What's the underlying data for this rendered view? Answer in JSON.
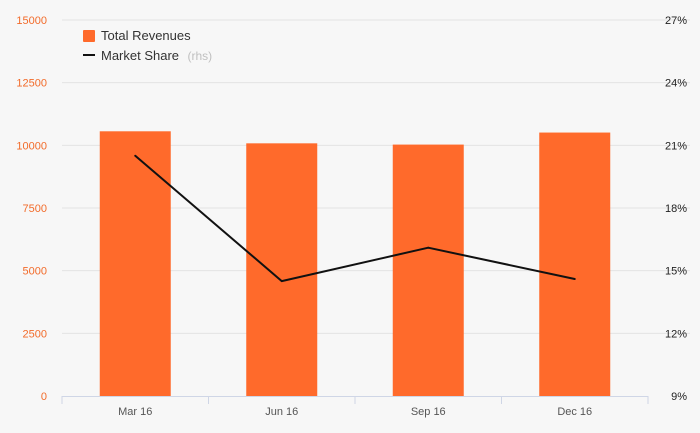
{
  "chart_data": {
    "type": "bar+line",
    "categories": [
      "Mar 16",
      "Jun 16",
      "Sep 16",
      "Dec 16"
    ],
    "series": [
      {
        "name": "Total Revenues",
        "type": "bar",
        "axis": "left",
        "color": "#ff6a2b",
        "values": [
          10560,
          10080,
          10030,
          10510
        ]
      },
      {
        "name": "Market Share",
        "name_suffix": "(rhs)",
        "type": "line",
        "axis": "right",
        "color": "#111111",
        "values": [
          20.5,
          14.5,
          16.1,
          14.6
        ]
      }
    ],
    "y_left": {
      "ylim": [
        0,
        15000
      ],
      "ticks": [
        "0",
        "2500",
        "5000",
        "7500",
        "10000",
        "12500",
        "15000"
      ],
      "tick_values": [
        0,
        2500,
        5000,
        7500,
        10000,
        12500,
        15000
      ],
      "tick_color": "#f26b2a"
    },
    "y_right": {
      "ylim": [
        9,
        27
      ],
      "ticks": [
        "9%",
        "12%",
        "15%",
        "18%",
        "21%",
        "24%",
        "27%"
      ],
      "tick_values": [
        9,
        12,
        15,
        18,
        21,
        24,
        27
      ]
    },
    "grid": true,
    "legend": "top-left",
    "title": "",
    "xlabel": "",
    "ylabel": ""
  }
}
